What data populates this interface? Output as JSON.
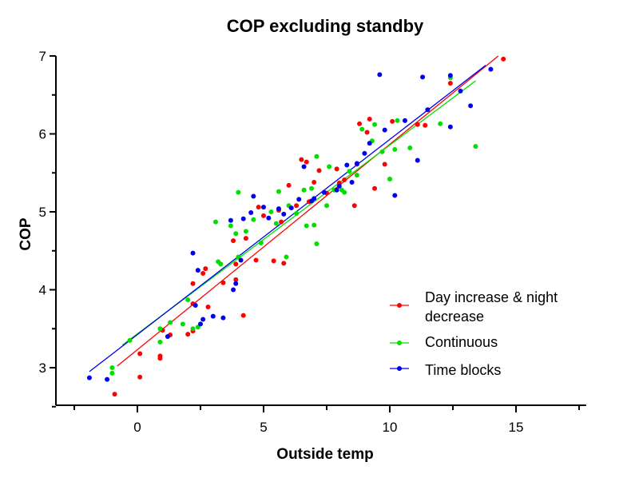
{
  "chart_data": {
    "type": "scatter",
    "title": "COP excluding standby",
    "xlabel": "Outside temp",
    "ylabel": "COP",
    "xlim": [
      -3,
      18
    ],
    "ylim": [
      2.5,
      7
    ],
    "x_ticks": [
      0,
      5,
      10,
      15
    ],
    "y_ticks": [
      3,
      4,
      5,
      6,
      7
    ],
    "grid": false,
    "legend_position": "bottom-right",
    "series": [
      {
        "name": "Day increase & night decrease",
        "color": "#ff0000",
        "points": [
          [
            -0.9,
            2.66
          ],
          [
            0.1,
            3.18
          ],
          [
            0.1,
            2.88
          ],
          [
            0.9,
            3.15
          ],
          [
            0.9,
            3.12
          ],
          [
            1.0,
            3.48
          ],
          [
            1.3,
            3.42
          ],
          [
            2.0,
            3.43
          ],
          [
            2.2,
            3.47
          ],
          [
            2.2,
            3.82
          ],
          [
            2.2,
            4.08
          ],
          [
            2.6,
            4.21
          ],
          [
            2.7,
            4.27
          ],
          [
            2.8,
            3.78
          ],
          [
            3.4,
            4.09
          ],
          [
            3.8,
            4.63
          ],
          [
            3.9,
            4.33
          ],
          [
            3.9,
            4.13
          ],
          [
            4.2,
            3.67
          ],
          [
            4.3,
            4.66
          ],
          [
            4.7,
            4.38
          ],
          [
            4.8,
            5.06
          ],
          [
            5.0,
            4.95
          ],
          [
            5.4,
            4.37
          ],
          [
            5.6,
            5.02
          ],
          [
            5.7,
            4.87
          ],
          [
            5.8,
            4.34
          ],
          [
            6.0,
            5.34
          ],
          [
            6.3,
            5.08
          ],
          [
            6.5,
            5.67
          ],
          [
            6.7,
            5.64
          ],
          [
            6.8,
            5.13
          ],
          [
            7.0,
            5.38
          ],
          [
            7.2,
            5.53
          ],
          [
            7.5,
            5.24
          ],
          [
            7.9,
            5.55
          ],
          [
            8.0,
            5.37
          ],
          [
            8.2,
            5.41
          ],
          [
            8.6,
            5.08
          ],
          [
            8.7,
            5.61
          ],
          [
            8.8,
            6.13
          ],
          [
            9.1,
            6.02
          ],
          [
            9.2,
            6.19
          ],
          [
            9.4,
            5.3
          ],
          [
            9.8,
            5.61
          ],
          [
            10.1,
            6.16
          ],
          [
            11.1,
            6.12
          ],
          [
            11.4,
            6.11
          ],
          [
            12.4,
            6.65
          ],
          [
            14.5,
            6.96
          ]
        ],
        "fit": {
          "x": [
            -0.8,
            14.3
          ],
          "y": [
            3.02,
            7.0
          ]
        }
      },
      {
        "name": "Continuous",
        "color": "#00e000",
        "points": [
          [
            -0.3,
            3.35
          ],
          [
            -1.0,
            3.0
          ],
          [
            -1.0,
            2.93
          ],
          [
            0.9,
            3.33
          ],
          [
            0.9,
            3.5
          ],
          [
            1.3,
            3.58
          ],
          [
            1.8,
            3.56
          ],
          [
            2.0,
            3.87
          ],
          [
            2.2,
            3.5
          ],
          [
            2.4,
            3.52
          ],
          [
            3.1,
            4.87
          ],
          [
            3.2,
            4.36
          ],
          [
            3.3,
            4.33
          ],
          [
            3.7,
            4.82
          ],
          [
            3.9,
            4.72
          ],
          [
            4.0,
            4.42
          ],
          [
            4.0,
            5.25
          ],
          [
            4.3,
            4.75
          ],
          [
            4.6,
            4.9
          ],
          [
            4.9,
            4.6
          ],
          [
            5.3,
            5.0
          ],
          [
            5.5,
            4.85
          ],
          [
            5.6,
            5.26
          ],
          [
            5.9,
            4.42
          ],
          [
            6.0,
            5.08
          ],
          [
            6.3,
            4.98
          ],
          [
            6.6,
            5.28
          ],
          [
            6.7,
            4.82
          ],
          [
            6.9,
            5.3
          ],
          [
            7.0,
            4.83
          ],
          [
            7.1,
            4.59
          ],
          [
            7.1,
            5.71
          ],
          [
            7.5,
            5.08
          ],
          [
            7.6,
            5.58
          ],
          [
            7.8,
            5.28
          ],
          [
            8.1,
            5.28
          ],
          [
            8.2,
            5.25
          ],
          [
            8.4,
            5.52
          ],
          [
            8.7,
            5.47
          ],
          [
            8.9,
            6.06
          ],
          [
            9.3,
            5.91
          ],
          [
            9.4,
            6.12
          ],
          [
            9.7,
            5.77
          ],
          [
            10.0,
            5.42
          ],
          [
            10.2,
            5.8
          ],
          [
            10.3,
            6.17
          ],
          [
            10.8,
            5.82
          ],
          [
            12.0,
            6.13
          ],
          [
            12.4,
            6.72
          ],
          [
            13.4,
            5.84
          ]
        ],
        "fit": {
          "x": [
            -0.6,
            13.4
          ],
          "y": [
            3.29,
            6.68
          ]
        }
      },
      {
        "name": "Time blocks",
        "color": "#0000ee",
        "points": [
          [
            -1.9,
            2.87
          ],
          [
            -1.2,
            2.85
          ],
          [
            1.2,
            3.4
          ],
          [
            2.2,
            4.47
          ],
          [
            2.3,
            3.8
          ],
          [
            2.4,
            4.25
          ],
          [
            2.5,
            3.56
          ],
          [
            2.6,
            3.62
          ],
          [
            3.0,
            3.66
          ],
          [
            3.4,
            3.64
          ],
          [
            3.7,
            4.89
          ],
          [
            3.8,
            4.0
          ],
          [
            3.9,
            4.08
          ],
          [
            4.1,
            4.38
          ],
          [
            4.2,
            4.91
          ],
          [
            4.5,
            4.99
          ],
          [
            4.6,
            5.2
          ],
          [
            5.0,
            5.06
          ],
          [
            5.2,
            4.92
          ],
          [
            5.6,
            5.04
          ],
          [
            5.8,
            4.97
          ],
          [
            6.1,
            5.05
          ],
          [
            6.4,
            5.16
          ],
          [
            6.6,
            5.58
          ],
          [
            6.9,
            5.14
          ],
          [
            7.0,
            5.17
          ],
          [
            7.4,
            5.25
          ],
          [
            7.9,
            5.28
          ],
          [
            8.0,
            5.33
          ],
          [
            8.3,
            5.6
          ],
          [
            8.5,
            5.38
          ],
          [
            8.7,
            5.62
          ],
          [
            9.0,
            5.75
          ],
          [
            9.2,
            5.88
          ],
          [
            9.6,
            6.76
          ],
          [
            9.8,
            6.05
          ],
          [
            10.2,
            5.21
          ],
          [
            10.6,
            6.17
          ],
          [
            11.1,
            5.66
          ],
          [
            11.3,
            6.73
          ],
          [
            11.5,
            6.31
          ],
          [
            12.4,
            6.09
          ],
          [
            12.4,
            6.75
          ],
          [
            12.8,
            6.55
          ],
          [
            13.2,
            6.36
          ],
          [
            14.0,
            6.83
          ]
        ],
        "fit": {
          "x": [
            -1.9,
            13.8
          ],
          "y": [
            2.95,
            6.88
          ]
        }
      }
    ]
  }
}
